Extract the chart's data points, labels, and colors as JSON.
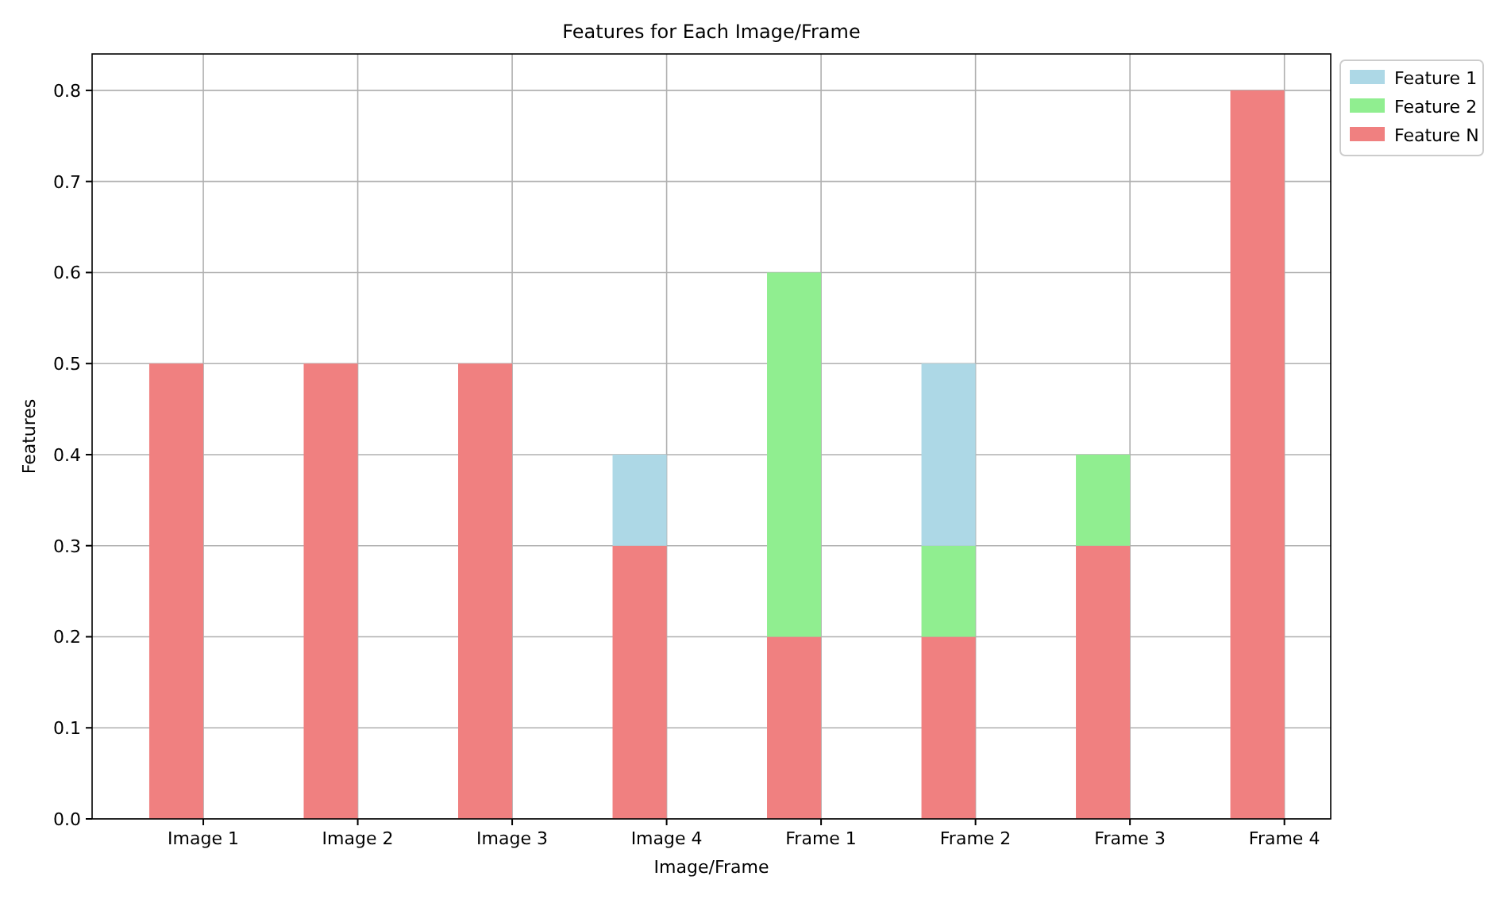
{
  "chart_data": {
    "type": "bar",
    "title": "Features for Each Image/Frame",
    "xlabel": "Image/Frame",
    "ylabel": "Features",
    "categories": [
      "Image 1",
      "Image 2",
      "Image 3",
      "Image 4",
      "Frame 1",
      "Frame 2",
      "Frame 3",
      "Frame 4"
    ],
    "stacked": true,
    "series": [
      {
        "name": "Feature N",
        "color": "#f08080",
        "values": [
          0.5,
          0.5,
          0.5,
          0.3,
          0.2,
          0.2,
          0.3,
          0.8
        ]
      },
      {
        "name": "Feature 2",
        "color": "#90ee90",
        "values": [
          0,
          0,
          0,
          0,
          0.4,
          0.1,
          0.1,
          0
        ]
      },
      {
        "name": "Feature 1",
        "color": "#add8e6",
        "values": [
          0,
          0,
          0,
          0.1,
          0,
          0.2,
          0,
          0
        ]
      }
    ],
    "ylim": [
      0,
      0.84
    ],
    "yticks": [
      {
        "value": 0,
        "label": "0.0"
      },
      {
        "value": 0.1,
        "label": "0.1"
      },
      {
        "value": 0.2,
        "label": "0.2"
      },
      {
        "value": 0.3,
        "label": "0.3"
      },
      {
        "value": 0.4,
        "label": "0.4"
      },
      {
        "value": 0.5,
        "label": "0.5"
      },
      {
        "value": 0.6,
        "label": "0.6"
      },
      {
        "value": 0.7,
        "label": "0.7"
      },
      {
        "value": 0.8,
        "label": "0.8"
      }
    ],
    "grid": true,
    "legend": "top right"
  }
}
